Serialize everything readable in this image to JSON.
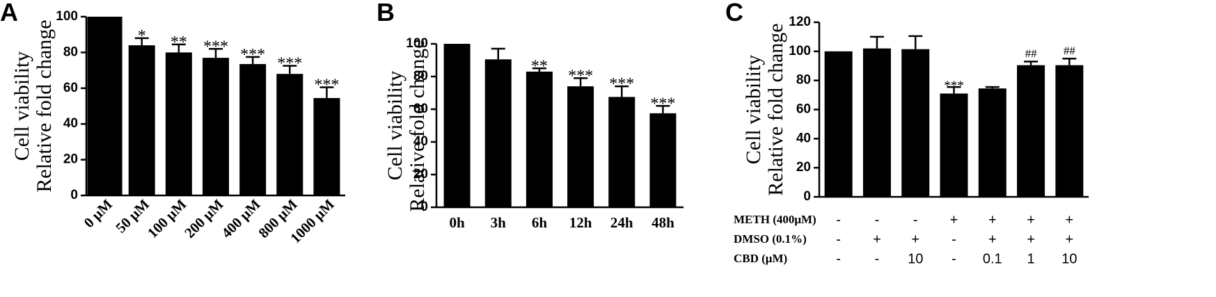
{
  "chart_data": [
    {
      "panel": "A",
      "type": "bar",
      "ylabel": [
        "Cell viability",
        "Relative fold change"
      ],
      "ylim": [
        0,
        100
      ],
      "yticks": [
        0,
        20,
        40,
        60,
        80,
        100
      ],
      "categories": [
        "0 μM",
        "50 μM",
        "100 μM",
        "200 μM",
        "400 μM",
        "800 μM",
        "1000 μM"
      ],
      "values": [
        100,
        84,
        80,
        77,
        73.5,
        68,
        54.5
      ],
      "errors": [
        0,
        4,
        4.5,
        5,
        4,
        4.5,
        6
      ],
      "annotations": [
        "",
        "*",
        "**",
        "***",
        "***",
        "***",
        "***"
      ],
      "colors": {
        "bar": "#000000"
      }
    },
    {
      "panel": "B",
      "type": "bar",
      "ylabel": [
        "Cell viability",
        "Relative fold change"
      ],
      "ylim": [
        0,
        100
      ],
      "yticks": [
        0,
        20,
        40,
        60,
        80,
        100
      ],
      "categories": [
        "0h",
        "3h",
        "6h",
        "12h",
        "24h",
        "48h"
      ],
      "values": [
        100,
        90.5,
        83,
        74,
        67.5,
        57.5
      ],
      "errors": [
        0,
        6.5,
        2,
        5,
        6.5,
        4.5
      ],
      "annotations": [
        "",
        "",
        "**",
        "***",
        "***",
        "***"
      ],
      "colors": {
        "bar": "#000000"
      }
    },
    {
      "panel": "C",
      "type": "bar",
      "ylabel": [
        "Cell viability",
        "Relative fold change"
      ],
      "ylim": [
        0,
        120
      ],
      "yticks": [
        0,
        20,
        40,
        60,
        80,
        100,
        120
      ],
      "values": [
        100,
        102,
        101.5,
        71,
        74.5,
        90.5,
        90.5
      ],
      "errors": [
        0,
        8,
        9,
        4.5,
        1,
        2.5,
        4.5
      ],
      "annotations": [
        "",
        "",
        "",
        "***",
        "",
        "##",
        "##"
      ],
      "treatment_table": [
        {
          "label": "METH (400μM)",
          "values": [
            "-",
            "-",
            "-",
            "+",
            "+",
            "+",
            "+"
          ]
        },
        {
          "label": "DMSO (0.1%)",
          "values": [
            "-",
            "+",
            "+",
            "-",
            "+",
            "+",
            "+"
          ]
        },
        {
          "label": "CBD (μM)",
          "values": [
            "-",
            "-",
            "10",
            "-",
            "0.1",
            "1",
            "10"
          ]
        }
      ],
      "colors": {
        "bar": "#000000"
      }
    }
  ]
}
